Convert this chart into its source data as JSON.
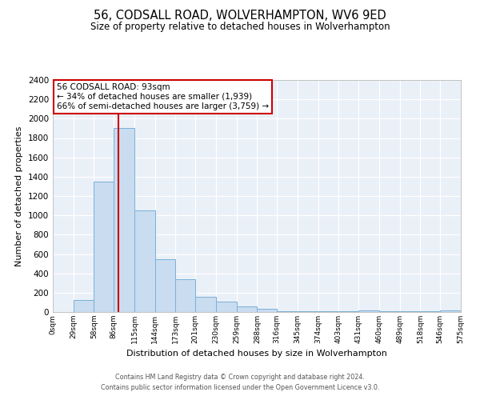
{
  "title": "56, CODSALL ROAD, WOLVERHAMPTON, WV6 9ED",
  "subtitle": "Size of property relative to detached houses in Wolverhampton",
  "xlabel": "Distribution of detached houses by size in Wolverhampton",
  "ylabel": "Number of detached properties",
  "bin_edges": [
    0,
    29,
    58,
    86,
    115,
    144,
    173,
    201,
    230,
    259,
    288,
    316,
    345,
    374,
    403,
    431,
    460,
    489,
    518,
    546,
    575
  ],
  "bar_heights": [
    0,
    125,
    1350,
    1900,
    1050,
    550,
    340,
    160,
    110,
    60,
    30,
    5,
    5,
    5,
    5,
    20,
    5,
    5,
    5,
    20
  ],
  "bar_color": "#c9dcf0",
  "bar_edgecolor": "#7ab0d8",
  "vline_x": 93,
  "vline_color": "#cc0000",
  "annotation_title": "56 CODSALL ROAD: 93sqm",
  "annotation_line1": "← 34% of detached houses are smaller (1,939)",
  "annotation_line2": "66% of semi-detached houses are larger (3,759) →",
  "annotation_box_edgecolor": "#cc0000",
  "ylim": [
    0,
    2400
  ],
  "yticks": [
    0,
    200,
    400,
    600,
    800,
    1000,
    1200,
    1400,
    1600,
    1800,
    2000,
    2200,
    2400
  ],
  "xtick_labels": [
    "0sqm",
    "29sqm",
    "58sqm",
    "86sqm",
    "115sqm",
    "144sqm",
    "173sqm",
    "201sqm",
    "230sqm",
    "259sqm",
    "288sqm",
    "316sqm",
    "345sqm",
    "374sqm",
    "403sqm",
    "431sqm",
    "460sqm",
    "489sqm",
    "518sqm",
    "546sqm",
    "575sqm"
  ],
  "footer1": "Contains HM Land Registry data © Crown copyright and database right 2024.",
  "footer2": "Contains public sector information licensed under the Open Government Licence v3.0.",
  "bg_color": "#ffffff",
  "plot_bg_color": "#eaf0f8"
}
